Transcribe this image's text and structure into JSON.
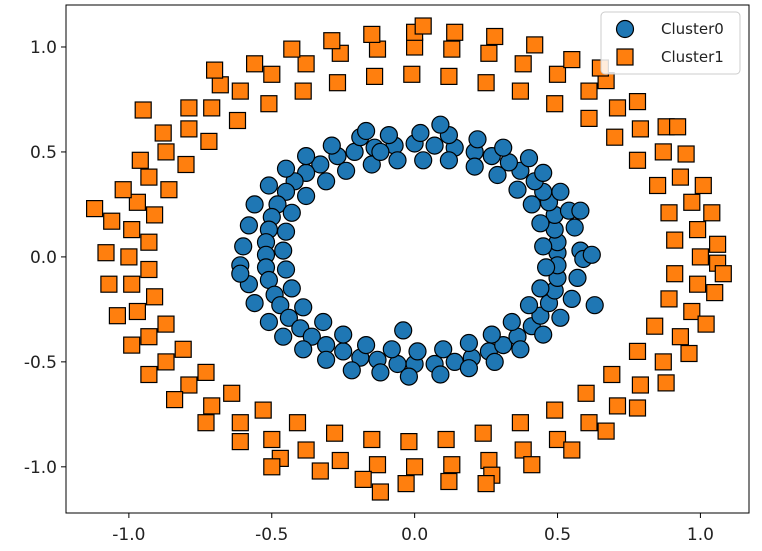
{
  "chart_data": {
    "type": "scatter",
    "title": "",
    "xlabel": "",
    "ylabel": "",
    "xlim": [
      -1.22,
      1.17
    ],
    "ylim": [
      -1.22,
      1.2
    ],
    "x_ticks": [
      -1.0,
      -0.5,
      0.0,
      0.5,
      1.0
    ],
    "x_tick_labels": [
      "-1.0",
      "-0.5",
      "0.0",
      "0.5",
      "1.0"
    ],
    "y_ticks": [
      -1.0,
      -0.5,
      0.0,
      0.5,
      1.0
    ],
    "y_tick_labels": [
      "-1.0",
      "-0.5",
      "0.0",
      "0.5",
      "1.0"
    ],
    "grid": false,
    "legend_position": "top-right",
    "series": [
      {
        "name": "Cluster0",
        "marker": "circle",
        "color": "#1f77b4",
        "edge_color": "#000000",
        "points": [
          [
            0.5,
            0.02
          ],
          [
            0.5,
            0.07
          ],
          [
            0.49,
            0.13
          ],
          [
            0.49,
            0.2
          ],
          [
            0.47,
            0.26
          ],
          [
            0.45,
            0.31
          ],
          [
            0.42,
            0.36
          ],
          [
            0.37,
            0.41
          ],
          [
            0.33,
            0.45
          ],
          [
            0.27,
            0.48
          ],
          [
            0.21,
            0.5
          ],
          [
            0.14,
            0.52
          ],
          [
            0.07,
            0.53
          ],
          [
            0.0,
            0.54
          ],
          [
            -0.07,
            0.53
          ],
          [
            -0.14,
            0.52
          ],
          [
            -0.21,
            0.5
          ],
          [
            -0.27,
            0.48
          ],
          [
            -0.33,
            0.44
          ],
          [
            -0.38,
            0.4
          ],
          [
            -0.42,
            0.36
          ],
          [
            -0.45,
            0.31
          ],
          [
            -0.48,
            0.25
          ],
          [
            -0.5,
            0.19
          ],
          [
            -0.51,
            0.13
          ],
          [
            -0.52,
            0.07
          ],
          [
            -0.52,
            0.01
          ],
          [
            -0.52,
            -0.05
          ],
          [
            -0.51,
            -0.11
          ],
          [
            -0.49,
            -0.18
          ],
          [
            -0.47,
            -0.23
          ],
          [
            -0.44,
            -0.29
          ],
          [
            -0.4,
            -0.34
          ],
          [
            -0.36,
            -0.38
          ],
          [
            -0.31,
            -0.42
          ],
          [
            -0.25,
            -0.45
          ],
          [
            -0.19,
            -0.48
          ],
          [
            -0.13,
            -0.49
          ],
          [
            -0.06,
            -0.51
          ],
          [
            0.0,
            -0.51
          ],
          [
            0.07,
            -0.51
          ],
          [
            0.14,
            -0.5
          ],
          [
            0.2,
            -0.48
          ],
          [
            0.26,
            -0.45
          ],
          [
            0.31,
            -0.42
          ],
          [
            0.36,
            -0.38
          ],
          [
            0.41,
            -0.33
          ],
          [
            0.44,
            -0.28
          ],
          [
            0.47,
            -0.22
          ],
          [
            0.49,
            -0.16
          ],
          [
            0.5,
            -0.1
          ],
          [
            0.5,
            -0.04
          ],
          [
            0.58,
            0.03
          ],
          [
            0.56,
            0.14
          ],
          [
            0.54,
            0.22
          ],
          [
            0.51,
            0.31
          ],
          [
            0.45,
            0.4
          ],
          [
            0.4,
            0.47
          ],
          [
            0.31,
            0.52
          ],
          [
            0.22,
            0.56
          ],
          [
            0.12,
            0.58
          ],
          [
            0.02,
            0.59
          ],
          [
            -0.09,
            0.58
          ],
          [
            -0.19,
            0.57
          ],
          [
            -0.29,
            0.53
          ],
          [
            -0.38,
            0.48
          ],
          [
            -0.45,
            0.42
          ],
          [
            -0.51,
            0.34
          ],
          [
            -0.56,
            0.25
          ],
          [
            -0.58,
            0.15
          ],
          [
            -0.6,
            0.05
          ],
          [
            -0.61,
            -0.04
          ],
          [
            -0.58,
            -0.13
          ],
          [
            -0.56,
            -0.22
          ],
          [
            -0.51,
            -0.31
          ],
          [
            -0.46,
            -0.38
          ],
          [
            -0.39,
            -0.44
          ],
          [
            -0.31,
            -0.49
          ],
          [
            -0.22,
            -0.54
          ],
          [
            -0.12,
            -0.55
          ],
          [
            -0.02,
            -0.57
          ],
          [
            0.09,
            -0.56
          ],
          [
            0.19,
            -0.53
          ],
          [
            0.28,
            -0.5
          ],
          [
            0.37,
            -0.44
          ],
          [
            0.45,
            -0.37
          ],
          [
            0.51,
            -0.29
          ],
          [
            0.55,
            -0.2
          ],
          [
            0.57,
            -0.1
          ],
          [
            0.59,
            -0.01
          ],
          [
            0.45,
            0.05
          ],
          [
            0.44,
            0.16
          ],
          [
            0.41,
            0.25
          ],
          [
            0.36,
            0.32
          ],
          [
            0.29,
            0.39
          ],
          [
            0.21,
            0.43
          ],
          [
            0.12,
            0.46
          ],
          [
            0.03,
            0.46
          ],
          [
            -0.06,
            0.46
          ],
          [
            -0.15,
            0.44
          ],
          [
            -0.24,
            0.41
          ],
          [
            -0.31,
            0.36
          ],
          [
            -0.38,
            0.29
          ],
          [
            -0.43,
            0.21
          ],
          [
            -0.45,
            0.12
          ],
          [
            -0.46,
            0.03
          ],
          [
            -0.45,
            -0.06
          ],
          [
            -0.43,
            -0.15
          ],
          [
            -0.39,
            -0.24
          ],
          [
            -0.32,
            -0.31
          ],
          [
            -0.25,
            -0.37
          ],
          [
            -0.17,
            -0.42
          ],
          [
            -0.08,
            -0.44
          ],
          [
            0.01,
            -0.45
          ],
          [
            0.1,
            -0.44
          ],
          [
            0.19,
            -0.41
          ],
          [
            0.27,
            -0.37
          ],
          [
            0.34,
            -0.31
          ],
          [
            0.4,
            -0.23
          ],
          [
            0.44,
            -0.15
          ],
          [
            0.46,
            -0.05
          ],
          [
            0.09,
            0.63
          ],
          [
            -0.17,
            0.6
          ],
          [
            0.62,
            0.01
          ],
          [
            0.63,
            -0.23
          ],
          [
            -0.61,
            -0.08
          ],
          [
            -0.04,
            -0.35
          ],
          [
            -0.12,
            0.5
          ],
          [
            0.58,
            0.22
          ]
        ]
      },
      {
        "name": "Cluster1",
        "marker": "square",
        "color": "#ff7f0e",
        "edge_color": "#000000",
        "points": [
          [
            1.0,
            0.0
          ],
          [
            0.99,
            0.13
          ],
          [
            0.97,
            0.26
          ],
          [
            0.93,
            0.38
          ],
          [
            0.87,
            0.5
          ],
          [
            0.79,
            0.61
          ],
          [
            0.71,
            0.71
          ],
          [
            0.61,
            0.79
          ],
          [
            0.5,
            0.87
          ],
          [
            0.38,
            0.92
          ],
          [
            0.26,
            0.97
          ],
          [
            0.13,
            0.99
          ],
          [
            0.0,
            1.0
          ],
          [
            -0.13,
            0.99
          ],
          [
            -0.26,
            0.97
          ],
          [
            -0.38,
            0.92
          ],
          [
            -0.5,
            0.87
          ],
          [
            -0.61,
            0.79
          ],
          [
            -0.71,
            0.71
          ],
          [
            -0.79,
            0.61
          ],
          [
            -0.87,
            0.5
          ],
          [
            -0.93,
            0.38
          ],
          [
            -0.97,
            0.26
          ],
          [
            -0.99,
            0.13
          ],
          [
            -1.0,
            0.0
          ],
          [
            -0.99,
            -0.13
          ],
          [
            -0.97,
            -0.26
          ],
          [
            -0.93,
            -0.38
          ],
          [
            -0.87,
            -0.5
          ],
          [
            -0.79,
            -0.61
          ],
          [
            -0.71,
            -0.71
          ],
          [
            -0.61,
            -0.79
          ],
          [
            -0.5,
            -0.87
          ],
          [
            -0.38,
            -0.92
          ],
          [
            -0.26,
            -0.97
          ],
          [
            -0.13,
            -0.99
          ],
          [
            0.0,
            -1.0
          ],
          [
            0.13,
            -0.99
          ],
          [
            0.26,
            -0.97
          ],
          [
            0.38,
            -0.92
          ],
          [
            0.5,
            -0.87
          ],
          [
            0.61,
            -0.79
          ],
          [
            0.71,
            -0.71
          ],
          [
            0.79,
            -0.61
          ],
          [
            0.87,
            -0.5
          ],
          [
            0.93,
            -0.38
          ],
          [
            0.97,
            -0.26
          ],
          [
            0.99,
            -0.13
          ],
          [
            1.06,
            0.06
          ],
          [
            1.04,
            0.21
          ],
          [
            1.01,
            0.34
          ],
          [
            0.95,
            0.49
          ],
          [
            0.88,
            0.62
          ],
          [
            0.78,
            0.74
          ],
          [
            0.67,
            0.84
          ],
          [
            0.55,
            0.94
          ],
          [
            0.42,
            1.01
          ],
          [
            0.28,
            1.05
          ],
          [
            0.14,
            1.07
          ],
          [
            0.0,
            1.07
          ],
          [
            -0.15,
            1.06
          ],
          [
            -0.29,
            1.03
          ],
          [
            -0.43,
            0.99
          ],
          [
            -0.56,
            0.92
          ],
          [
            -0.68,
            0.82
          ],
          [
            -0.79,
            0.71
          ],
          [
            -0.88,
            0.59
          ],
          [
            -0.96,
            0.46
          ],
          [
            -1.02,
            0.32
          ],
          [
            -1.06,
            0.17
          ],
          [
            -1.08,
            0.02
          ],
          [
            -1.07,
            -0.13
          ],
          [
            -1.04,
            -0.28
          ],
          [
            -0.99,
            -0.42
          ],
          [
            -0.93,
            -0.56
          ],
          [
            -0.84,
            -0.68
          ],
          [
            -0.73,
            -0.79
          ],
          [
            -0.61,
            -0.88
          ],
          [
            -0.47,
            -0.96
          ],
          [
            -0.33,
            -1.02
          ],
          [
            -0.18,
            -1.06
          ],
          [
            -0.03,
            -1.08
          ],
          [
            0.12,
            -1.07
          ],
          [
            0.27,
            -1.04
          ],
          [
            0.41,
            -0.99
          ],
          [
            0.55,
            -0.92
          ],
          [
            0.67,
            -0.83
          ],
          [
            0.78,
            -0.72
          ],
          [
            0.88,
            -0.6
          ],
          [
            0.96,
            -0.46
          ],
          [
            1.02,
            -0.32
          ],
          [
            1.05,
            -0.17
          ],
          [
            1.06,
            -0.03
          ],
          [
            0.91,
            0.08
          ],
          [
            0.89,
            0.21
          ],
          [
            0.85,
            0.34
          ],
          [
            0.78,
            0.46
          ],
          [
            0.7,
            0.57
          ],
          [
            0.61,
            0.66
          ],
          [
            0.49,
            0.73
          ],
          [
            0.37,
            0.79
          ],
          [
            0.25,
            0.83
          ],
          [
            0.12,
            0.86
          ],
          [
            -0.01,
            0.87
          ],
          [
            -0.14,
            0.86
          ],
          [
            -0.27,
            0.83
          ],
          [
            -0.39,
            0.79
          ],
          [
            -0.51,
            0.73
          ],
          [
            -0.62,
            0.65
          ],
          [
            -0.72,
            0.55
          ],
          [
            -0.8,
            0.44
          ],
          [
            -0.86,
            0.32
          ],
          [
            -0.91,
            0.2
          ],
          [
            -0.93,
            0.07
          ],
          [
            -0.93,
            -0.06
          ],
          [
            -0.91,
            -0.19
          ],
          [
            -0.87,
            -0.32
          ],
          [
            -0.81,
            -0.44
          ],
          [
            -0.73,
            -0.55
          ],
          [
            -0.64,
            -0.65
          ],
          [
            -0.53,
            -0.73
          ],
          [
            -0.41,
            -0.79
          ],
          [
            -0.28,
            -0.84
          ],
          [
            -0.15,
            -0.87
          ],
          [
            -0.02,
            -0.88
          ],
          [
            0.11,
            -0.87
          ],
          [
            0.24,
            -0.84
          ],
          [
            0.37,
            -0.79
          ],
          [
            0.49,
            -0.73
          ],
          [
            0.6,
            -0.65
          ],
          [
            0.69,
            -0.56
          ],
          [
            0.78,
            -0.45
          ],
          [
            0.84,
            -0.33
          ],
          [
            0.89,
            -0.2
          ],
          [
            0.91,
            -0.08
          ],
          [
            -1.12,
            0.23
          ],
          [
            0.65,
            0.9
          ],
          [
            -0.7,
            0.89
          ],
          [
            0.03,
            1.1
          ],
          [
            -0.12,
            -1.12
          ],
          [
            0.25,
            -1.08
          ],
          [
            0.92,
            0.62
          ],
          [
            -0.95,
            0.7
          ],
          [
            1.08,
            -0.08
          ],
          [
            -0.5,
            -1.0
          ]
        ]
      }
    ]
  }
}
